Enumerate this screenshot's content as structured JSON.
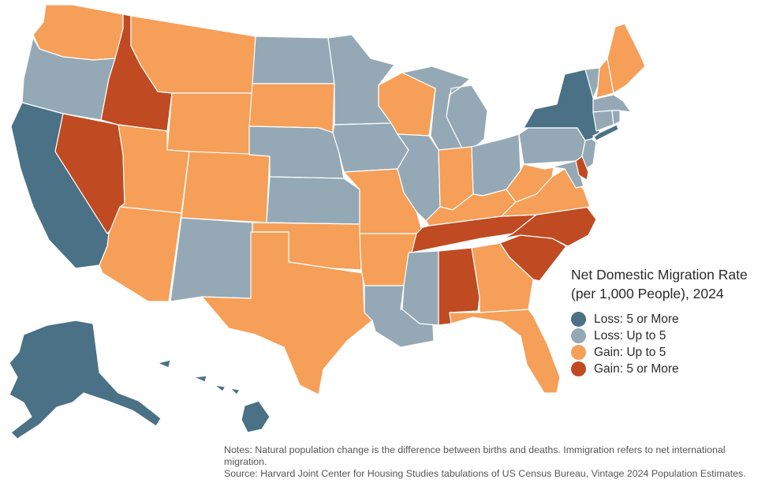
{
  "legend": {
    "title": "Net Domestic Migration Rate (per 1,000 People), 2024",
    "items": [
      {
        "key": "loss5",
        "label": "Loss: 5 or More",
        "color": "#4a7186"
      },
      {
        "key": "loss",
        "label": "Loss: Up to 5",
        "color": "#94a9b5"
      },
      {
        "key": "gain",
        "label": "Gain: Up to 5",
        "color": "#f69f58"
      },
      {
        "key": "gain5",
        "label": "Gain: 5 or More",
        "color": "#c04a22"
      }
    ]
  },
  "map": {
    "state_categories": {
      "WA": "gain",
      "OR": "loss",
      "CA": "loss5",
      "NV": "gain5",
      "ID": "gain5",
      "MT": "gain",
      "WY": "gain",
      "UT": "gain",
      "AZ": "gain",
      "CO": "gain",
      "NM": "loss",
      "ND": "loss",
      "SD": "gain",
      "NE": "loss",
      "KS": "loss",
      "OK": "gain",
      "TX": "gain",
      "MN": "loss",
      "IA": "loss",
      "MO": "gain",
      "AR": "gain",
      "LA": "loss",
      "WI": "gain",
      "IL": "loss",
      "MI": "loss",
      "IN": "gain",
      "OH": "loss",
      "KY": "gain",
      "TN": "gain5",
      "MS": "loss",
      "AL": "gain5",
      "GA": "gain",
      "FL": "gain",
      "SC": "gain5",
      "NC": "gain5",
      "VA": "gain",
      "WV": "gain",
      "PA": "loss",
      "NY": "loss5",
      "NJ": "loss",
      "DE": "gain5",
      "MD": "loss",
      "CT": "loss",
      "RI": "loss",
      "MA": "loss",
      "VT": "loss",
      "NH": "gain",
      "ME": "gain",
      "AK": "loss5",
      "HI": "loss5"
    }
  },
  "notes": {
    "line1": "Notes: Natural population change is the difference between births and deaths. Immigration refers to net international migration.",
    "line2": "Source: Harvard Joint Center for Housing Studies tabulations of US Census Bureau, Vintage 2024 Population Estimates."
  }
}
